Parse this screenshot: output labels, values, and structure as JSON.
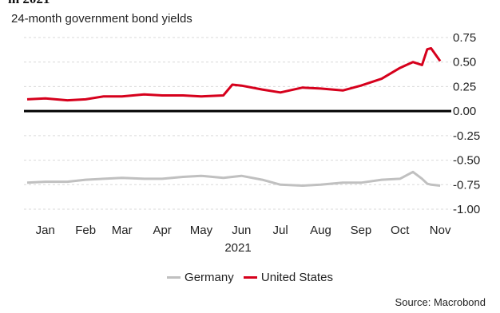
{
  "header": {
    "cut_text": "in 2021"
  },
  "chart_data": {
    "type": "line",
    "title": "24-month government bond yields",
    "xlabel": "2021",
    "ylabel": "",
    "ylim": [
      -1.0,
      0.75
    ],
    "yticks": [
      0.75,
      0.5,
      0.25,
      0.0,
      -0.25,
      -0.5,
      -0.75,
      -1.0
    ],
    "ytick_labels": [
      "0.75",
      "0.50",
      "0.25",
      "0.00",
      "-0.25",
      "-0.50",
      "-0.75",
      "-1.00"
    ],
    "months": [
      "Jan",
      "Feb",
      "Mar",
      "Apr",
      "May",
      "Jun",
      "Jul",
      "Aug",
      "Sep",
      "Oct",
      "Nov"
    ],
    "x": [
      "2021-01-01",
      "2021-01-15",
      "2021-02-01",
      "2021-02-15",
      "2021-03-01",
      "2021-03-15",
      "2021-04-01",
      "2021-04-15",
      "2021-05-01",
      "2021-05-15",
      "2021-06-01",
      "2021-06-08",
      "2021-06-15",
      "2021-07-01",
      "2021-07-15",
      "2021-08-01",
      "2021-08-15",
      "2021-09-01",
      "2021-09-15",
      "2021-10-01",
      "2021-10-15",
      "2021-10-25",
      "2021-11-01",
      "2021-11-05",
      "2021-11-08",
      "2021-11-15"
    ],
    "series": [
      {
        "name": "Germany",
        "color": "#c0c0c0",
        "values": [
          -0.73,
          -0.72,
          -0.72,
          -0.7,
          -0.69,
          -0.68,
          -0.69,
          -0.69,
          -0.67,
          -0.66,
          -0.68,
          -0.67,
          -0.66,
          -0.7,
          -0.75,
          -0.76,
          -0.75,
          -0.73,
          -0.73,
          -0.7,
          -0.69,
          -0.62,
          -0.69,
          -0.74,
          -0.75,
          -0.76
        ]
      },
      {
        "name": "United States",
        "color": "#d6001c",
        "values": [
          0.12,
          0.13,
          0.11,
          0.12,
          0.15,
          0.15,
          0.17,
          0.16,
          0.16,
          0.15,
          0.16,
          0.27,
          0.26,
          0.22,
          0.19,
          0.24,
          0.23,
          0.21,
          0.26,
          0.33,
          0.44,
          0.5,
          0.47,
          0.63,
          0.64,
          0.51
        ]
      }
    ],
    "grid": true,
    "legend": "bottom-center"
  },
  "footer": {
    "source": "Source: Macrobond"
  }
}
